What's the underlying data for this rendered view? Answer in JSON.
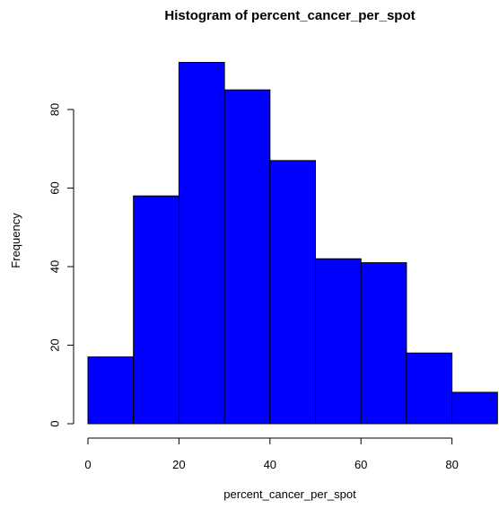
{
  "chart_data": {
    "type": "bar",
    "title": "Histogram of percent_cancer_per_spot",
    "xlabel": "percent_cancer_per_spot",
    "ylabel": "Frequency",
    "bins": [
      {
        "start": 0,
        "end": 10,
        "count": 17
      },
      {
        "start": 10,
        "end": 20,
        "count": 58
      },
      {
        "start": 20,
        "end": 30,
        "count": 92
      },
      {
        "start": 30,
        "end": 40,
        "count": 85
      },
      {
        "start": 40,
        "end": 50,
        "count": 67
      },
      {
        "start": 50,
        "end": 60,
        "count": 42
      },
      {
        "start": 60,
        "end": 70,
        "count": 41
      },
      {
        "start": 70,
        "end": 80,
        "count": 18
      },
      {
        "start": 80,
        "end": 90,
        "count": 8
      }
    ],
    "xlim": [
      0,
      90
    ],
    "ylim": [
      0,
      92
    ],
    "x_ticks": [
      "0",
      "20",
      "40",
      "60",
      "80"
    ],
    "y_ticks": [
      "0",
      "20",
      "40",
      "60",
      "80"
    ],
    "bar_color": "#0000ff",
    "grid": false,
    "legend": "none"
  }
}
